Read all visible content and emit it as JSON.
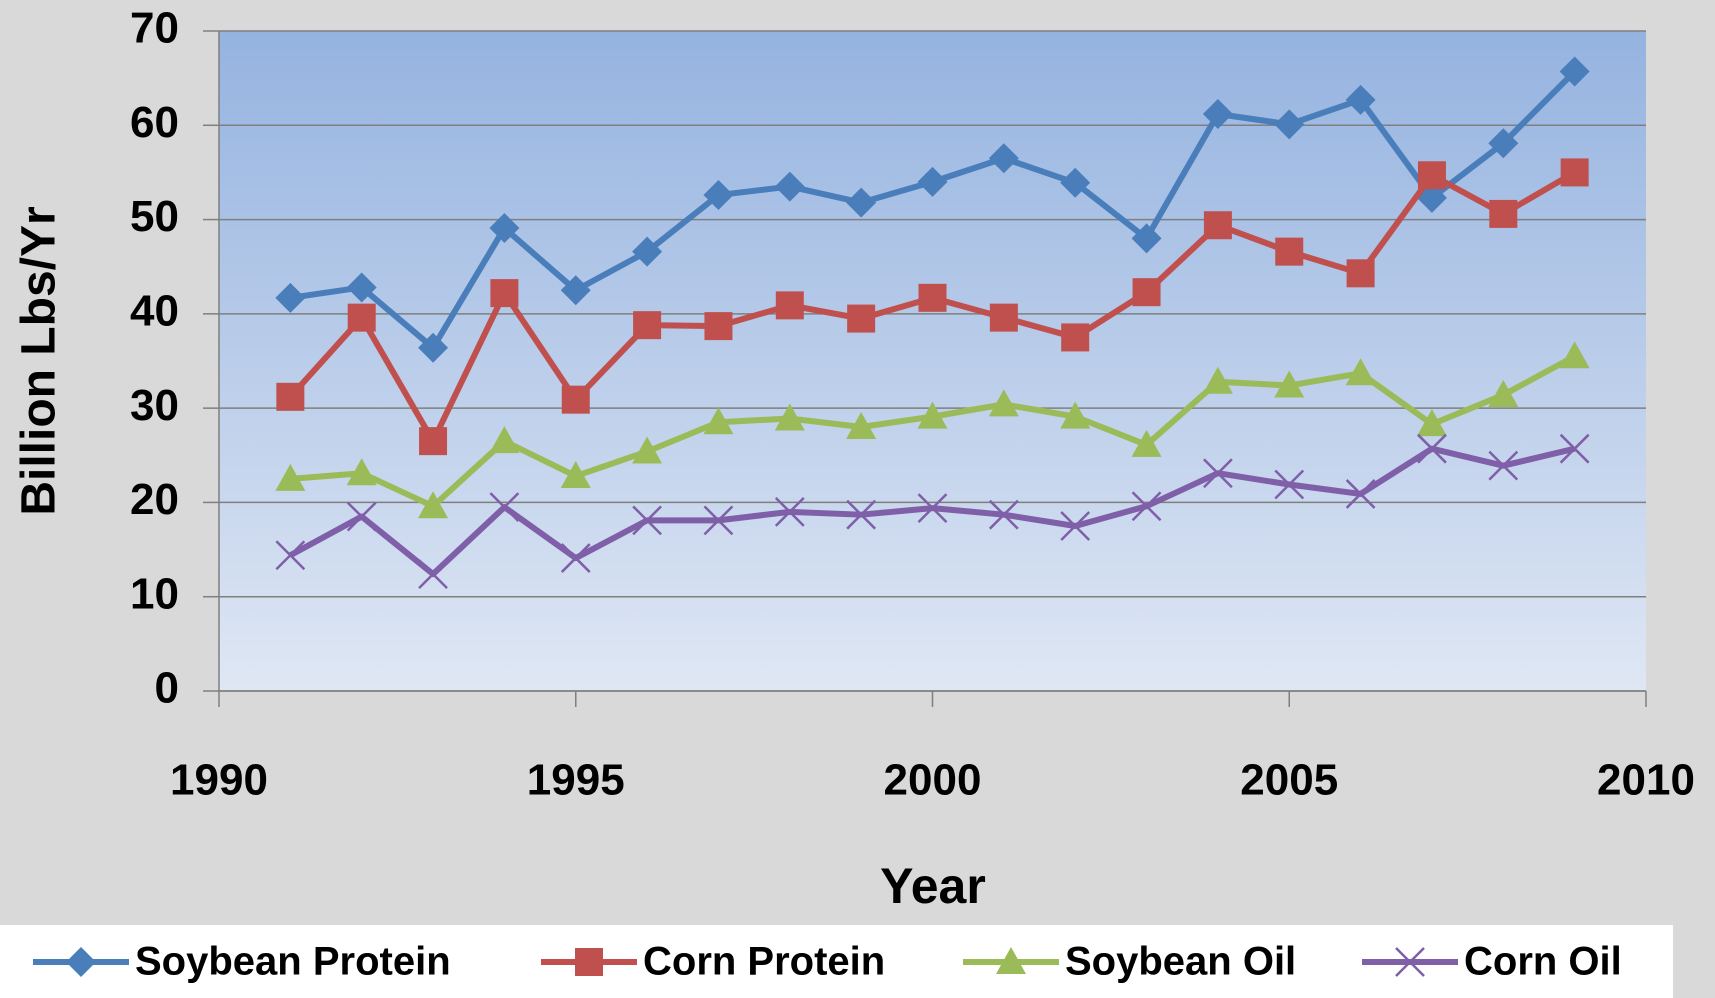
{
  "chart_data": {
    "type": "line",
    "x_label": "Year",
    "y_label": "Billion Lbs/Yr",
    "x": [
      1991,
      1992,
      1993,
      1994,
      1995,
      1996,
      1997,
      1998,
      1999,
      2000,
      2001,
      2002,
      2003,
      2004,
      2005,
      2006,
      2007,
      2008,
      2009
    ],
    "series": [
      {
        "name": "Soybean Protein",
        "color": "#4a7ebb",
        "values": [
          41.7,
          42.8,
          36.4,
          49.1,
          42.5,
          46.6,
          52.6,
          53.5,
          51.8,
          54.0,
          56.5,
          53.9,
          48.0,
          61.2,
          60.1,
          62.7,
          52.3,
          58.1,
          65.7
        ]
      },
      {
        "name": "Corn Protein",
        "color": "#c0504d",
        "values": [
          31.2,
          39.6,
          26.5,
          42.2,
          30.9,
          38.8,
          38.7,
          40.9,
          39.5,
          41.7,
          39.6,
          37.5,
          42.3,
          49.4,
          46.6,
          44.3,
          54.7,
          50.6,
          55.0
        ]
      },
      {
        "name": "Soybean Oil",
        "color": "#9bbb59",
        "values": [
          22.5,
          23.1,
          19.6,
          26.5,
          22.8,
          25.4,
          28.5,
          28.9,
          28.0,
          29.1,
          30.4,
          29.1,
          26.1,
          32.8,
          32.4,
          33.7,
          28.3,
          31.4,
          35.5
        ]
      },
      {
        "name": "Corn Oil",
        "color": "#7f5fa8",
        "values": [
          14.4,
          18.5,
          12.4,
          19.5,
          14.1,
          18.1,
          18.1,
          19.0,
          18.7,
          19.4,
          18.7,
          17.5,
          19.6,
          23.1,
          21.9,
          20.9,
          25.7,
          23.9,
          25.7
        ]
      }
    ],
    "xlim": [
      1990,
      2010
    ],
    "xticks": [
      1990,
      1995,
      2000,
      2005,
      2010
    ],
    "ylim": [
      0,
      70
    ],
    "yticks": [
      0,
      10,
      20,
      30,
      40,
      50,
      60,
      70
    ],
    "grid": true,
    "legend": "bottom"
  }
}
